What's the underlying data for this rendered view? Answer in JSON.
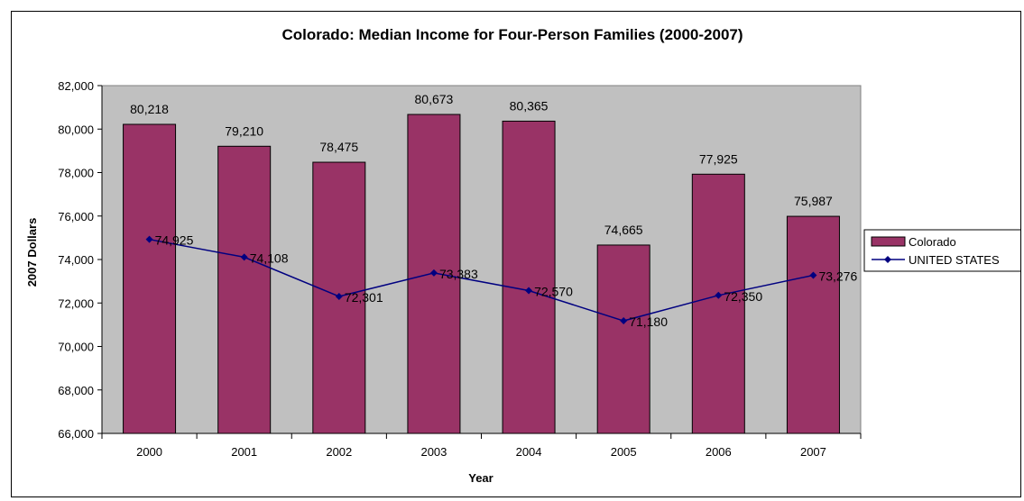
{
  "chart_data": {
    "type": "bar",
    "title": "Colorado: Median Income for Four-Person Families (2000-2007)",
    "xlabel": "Year",
    "ylabel": "2007 Dollars",
    "categories": [
      "2000",
      "2001",
      "2002",
      "2003",
      "2004",
      "2005",
      "2006",
      "2007"
    ],
    "ylim": [
      66000,
      82000
    ],
    "y_ticks": [
      "66,000",
      "68,000",
      "70,000",
      "72,000",
      "74,000",
      "76,000",
      "78,000",
      "80,000",
      "82,000"
    ],
    "grid": false,
    "legend_position": "right",
    "series": [
      {
        "name": "Colorado",
        "type": "bar",
        "color": "#993366",
        "values": [
          80218,
          79210,
          78475,
          80673,
          80365,
          74665,
          77925,
          75987
        ],
        "labels": [
          "80,218",
          "79,210",
          "78,475",
          "80,673",
          "80,365",
          "74,665",
          "77,925",
          "75,987"
        ]
      },
      {
        "name": "UNITED STATES",
        "type": "line",
        "color": "#000080",
        "values": [
          74925,
          74108,
          72301,
          73383,
          72570,
          71180,
          72350,
          73276
        ],
        "labels": [
          "74,925",
          "74,108",
          "72,301",
          "73,383",
          "72,570",
          "71,180",
          "72,350",
          "73,276"
        ]
      }
    ],
    "plot_background": "#c0c0c0"
  }
}
